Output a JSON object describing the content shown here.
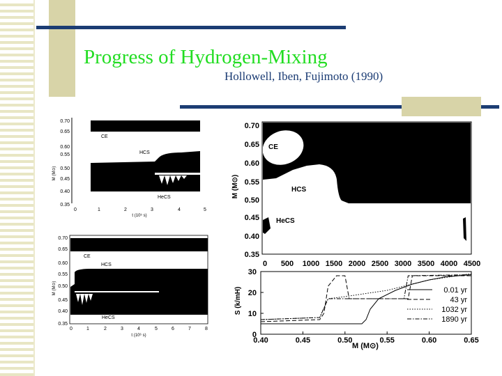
{
  "slide": {
    "title": "Progress of Hydrogen-Mixing",
    "subtitle": "Hollowell, Iben, Fujimoto (1990)",
    "colors": {
      "title": "#22dd22",
      "subtitle": "#1a3b73",
      "rule": "#1c3d73",
      "accent": "#d8d4a8"
    }
  },
  "figures": {
    "top_left": {
      "ylabel": "M (M⊙)",
      "xlabel": "t (10⁵ s)",
      "yticks": [
        "0.70",
        "0.65",
        "0.60",
        "0.55",
        "0.50",
        "0.45",
        "0.40",
        "0.35"
      ],
      "xticks": [
        "0",
        "1",
        "2",
        "3",
        "4",
        "5"
      ],
      "annotations": [
        "CE",
        "HCS",
        "HeCS"
      ]
    },
    "bottom_left": {
      "ylabel": "M (M⊙)",
      "xlabel": "t (10⁶ s)",
      "yticks": [
        "0.70",
        "0.65",
        "0.60",
        "0.55",
        "0.50",
        "0.45",
        "0.40",
        "0.35"
      ],
      "xticks": [
        "0",
        "1",
        "2",
        "3",
        "4",
        "5",
        "6",
        "7",
        "8"
      ],
      "annotations": [
        "CE",
        "HCS",
        "HeCS"
      ]
    },
    "right_top": {
      "ylabel": "M (M⊙)",
      "yticks": [
        "0.70",
        "0.65",
        "0.60",
        "0.55",
        "0.50",
        "0.45",
        "0.40",
        "0.35"
      ],
      "xticks": [
        "0",
        "500",
        "1000",
        "1500",
        "2000",
        "2500",
        "3000",
        "3500",
        "4000",
        "4500"
      ],
      "annotations": [
        "CE",
        "HCS",
        "HeCS"
      ]
    }
  },
  "chart_data": {
    "type": "line",
    "title": "",
    "xlabel": "M (M⊙)",
    "ylabel": "S (k/mH)",
    "xlim": [
      0.4,
      0.65
    ],
    "ylim": [
      0,
      30
    ],
    "xticks": [
      "0.40",
      "0.45",
      "0.50",
      "0.55",
      "0.60",
      "0.65"
    ],
    "yticks": [
      "0",
      "10",
      "20",
      "30"
    ],
    "legend_position": "right",
    "series": [
      {
        "name": "0.01 yr",
        "dash": "solid",
        "x": [
          0.4,
          0.52,
          0.525,
          0.53,
          0.54,
          0.56,
          0.58,
          0.6,
          0.62,
          0.65
        ],
        "y": [
          5,
          5,
          7,
          12,
          17,
          21,
          24,
          26,
          27.5,
          28.5
        ]
      },
      {
        "name": "43 yr",
        "dash": "dashed",
        "x": [
          0.4,
          0.47,
          0.475,
          0.48,
          0.49,
          0.5,
          0.505,
          0.55,
          0.575,
          0.58,
          0.65
        ],
        "y": [
          6,
          7,
          10,
          23,
          28,
          28,
          17,
          17,
          17,
          28,
          28
        ]
      },
      {
        "name": "1032 yr",
        "dash": "dotted",
        "x": [
          0.4,
          0.47,
          0.48,
          0.5,
          0.55,
          0.6,
          0.65
        ],
        "y": [
          7,
          8,
          17,
          18,
          21,
          26,
          29
        ]
      },
      {
        "name": "1890 yr",
        "dash": "dashdot",
        "x": [
          0.4,
          0.47,
          0.48,
          0.55,
          0.57,
          0.575,
          0.65
        ],
        "y": [
          7,
          8,
          17,
          17,
          17,
          28,
          28.5
        ]
      }
    ]
  }
}
